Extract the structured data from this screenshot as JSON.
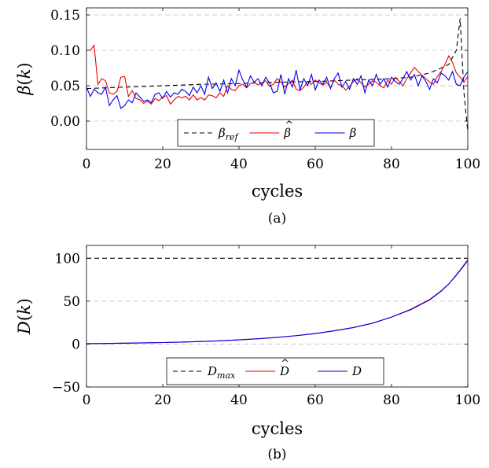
{
  "chart_data": [
    {
      "type": "line",
      "caption": "(a)",
      "xlabel": "cycles",
      "ylabel": "β(k)",
      "xlim": [
        0,
        100
      ],
      "ylim": [
        -0.04,
        0.16
      ],
      "xticks": [
        0,
        20,
        40,
        60,
        80,
        100
      ],
      "yticks": [
        0.0,
        0.05,
        0.1,
        0.15
      ],
      "ytick_labels": [
        "0.00",
        "0.05",
        "0.10",
        "0.15"
      ],
      "grid": "horizontal dashed",
      "legend_position": "bottom-center",
      "series": [
        {
          "name": "β_ref",
          "color": "#000000",
          "style": "dashed",
          "x": [
            0,
            10,
            20,
            30,
            40,
            50,
            60,
            70,
            80,
            85,
            90,
            93,
            95,
            97,
            98,
            99,
            100
          ],
          "y": [
            0.046,
            0.048,
            0.05,
            0.052,
            0.053,
            0.055,
            0.056,
            0.058,
            0.06,
            0.062,
            0.068,
            0.075,
            0.08,
            0.1,
            0.145,
            0.04,
            -0.015
          ]
        },
        {
          "name": "β̂",
          "color": "#ee0000",
          "style": "solid",
          "x": [
            0,
            1,
            2,
            3,
            4,
            5,
            6,
            7,
            8,
            9,
            10,
            11,
            12,
            13,
            14,
            15,
            16,
            17,
            18,
            19,
            20,
            21,
            22,
            23,
            24,
            25,
            26,
            27,
            28,
            29,
            30,
            31,
            32,
            33,
            34,
            35,
            36,
            37,
            38,
            39,
            40,
            41,
            42,
            43,
            44,
            45,
            46,
            47,
            48,
            49,
            50,
            51,
            52,
            53,
            54,
            55,
            56,
            57,
            58,
            59,
            60,
            61,
            62,
            63,
            64,
            65,
            66,
            67,
            68,
            69,
            70,
            71,
            72,
            73,
            74,
            75,
            76,
            77,
            78,
            79,
            80,
            81,
            82,
            83,
            84,
            85,
            86,
            87,
            88,
            89,
            90,
            91,
            92,
            93,
            94,
            95,
            96,
            97,
            98,
            99,
            100
          ],
          "y": [
            0.1,
            0.1,
            0.107,
            0.052,
            0.06,
            0.057,
            0.04,
            0.038,
            0.042,
            0.062,
            0.063,
            0.035,
            0.043,
            0.032,
            0.03,
            0.025,
            0.028,
            0.024,
            0.032,
            0.029,
            0.034,
            0.036,
            0.024,
            0.03,
            0.035,
            0.033,
            0.035,
            0.03,
            0.037,
            0.03,
            0.033,
            0.03,
            0.037,
            0.036,
            0.033,
            0.04,
            0.035,
            0.05,
            0.045,
            0.043,
            0.05,
            0.052,
            0.047,
            0.053,
            0.055,
            0.051,
            0.054,
            0.057,
            0.049,
            0.052,
            0.06,
            0.055,
            0.048,
            0.053,
            0.058,
            0.045,
            0.043,
            0.048,
            0.056,
            0.052,
            0.058,
            0.054,
            0.051,
            0.055,
            0.047,
            0.058,
            0.052,
            0.05,
            0.044,
            0.049,
            0.056,
            0.06,
            0.054,
            0.048,
            0.052,
            0.057,
            0.055,
            0.05,
            0.047,
            0.058,
            0.052,
            0.062,
            0.056,
            0.05,
            0.06,
            0.068,
            0.076,
            0.07,
            0.065,
            0.06,
            0.055,
            0.052,
            0.063,
            0.07,
            0.08,
            0.092,
            0.083,
            0.068,
            0.062,
            0.055,
            0.063
          ]
        },
        {
          "name": "β",
          "color": "#0000ee",
          "style": "solid",
          "x": [
            0,
            1,
            2,
            3,
            4,
            5,
            6,
            7,
            8,
            9,
            10,
            11,
            12,
            13,
            14,
            15,
            16,
            17,
            18,
            19,
            20,
            21,
            22,
            23,
            24,
            25,
            26,
            27,
            28,
            29,
            30,
            31,
            32,
            33,
            34,
            35,
            36,
            37,
            38,
            39,
            40,
            41,
            42,
            43,
            44,
            45,
            46,
            47,
            48,
            49,
            50,
            51,
            52,
            53,
            54,
            55,
            56,
            57,
            58,
            59,
            60,
            61,
            62,
            63,
            64,
            65,
            66,
            67,
            68,
            69,
            70,
            71,
            72,
            73,
            74,
            75,
            76,
            77,
            78,
            79,
            80,
            81,
            82,
            83,
            84,
            85,
            86,
            87,
            88,
            89,
            90,
            91,
            92,
            93,
            94,
            95,
            96,
            97,
            98,
            99,
            100
          ],
          "y": [
            0.048,
            0.035,
            0.045,
            0.04,
            0.038,
            0.048,
            0.022,
            0.03,
            0.036,
            0.018,
            0.022,
            0.03,
            0.026,
            0.04,
            0.034,
            0.028,
            0.03,
            0.026,
            0.038,
            0.04,
            0.032,
            0.042,
            0.034,
            0.04,
            0.038,
            0.045,
            0.042,
            0.036,
            0.048,
            0.04,
            0.05,
            0.038,
            0.062,
            0.046,
            0.054,
            0.042,
            0.058,
            0.04,
            0.06,
            0.05,
            0.072,
            0.058,
            0.048,
            0.064,
            0.055,
            0.06,
            0.05,
            0.062,
            0.054,
            0.04,
            0.042,
            0.066,
            0.038,
            0.06,
            0.048,
            0.072,
            0.044,
            0.06,
            0.05,
            0.066,
            0.044,
            0.058,
            0.052,
            0.062,
            0.046,
            0.06,
            0.068,
            0.048,
            0.056,
            0.045,
            0.06,
            0.052,
            0.064,
            0.04,
            0.058,
            0.05,
            0.066,
            0.052,
            0.06,
            0.048,
            0.062,
            0.056,
            0.052,
            0.06,
            0.07,
            0.058,
            0.066,
            0.05,
            0.064,
            0.056,
            0.045,
            0.06,
            0.054,
            0.068,
            0.064,
            0.058,
            0.07,
            0.052,
            0.05,
            0.062,
            0.07
          ]
        }
      ]
    },
    {
      "type": "line",
      "caption": "(b)",
      "xlabel": "cycles",
      "ylabel": "D(k)",
      "xlim": [
        0,
        100
      ],
      "ylim": [
        -50,
        115
      ],
      "xticks": [
        0,
        20,
        40,
        60,
        80,
        100
      ],
      "yticks": [
        -50,
        0,
        50,
        100
      ],
      "ytick_labels": [
        "−50",
        "0",
        "50",
        "100"
      ],
      "grid": "horizontal dashed",
      "legend_position": "bottom-center",
      "series": [
        {
          "name": "D_max",
          "color": "#000000",
          "style": "dashed",
          "x": [
            0,
            100
          ],
          "y": [
            100,
            100
          ]
        },
        {
          "name": "D̂",
          "color": "#ee0000",
          "style": "solid",
          "x": [
            0,
            5,
            10,
            15,
            20,
            25,
            30,
            35,
            40,
            45,
            50,
            55,
            60,
            65,
            70,
            75,
            80,
            85,
            90,
            93,
            95,
            97,
            100
          ],
          "y": [
            0.5,
            0.7,
            1.0,
            1.4,
            1.8,
            2.3,
            3.0,
            3.8,
            4.9,
            6.2,
            7.8,
            9.8,
            12.3,
            15.5,
            19.3,
            24.3,
            31.5,
            40.5,
            52.0,
            62.0,
            70.0,
            80.0,
            97.0
          ]
        },
        {
          "name": "D",
          "color": "#0000ee",
          "style": "solid",
          "x": [
            0,
            5,
            10,
            15,
            20,
            25,
            30,
            35,
            40,
            45,
            50,
            55,
            60,
            65,
            70,
            75,
            80,
            85,
            90,
            93,
            95,
            97,
            100
          ],
          "y": [
            0.5,
            0.7,
            1.0,
            1.4,
            1.8,
            2.3,
            3.0,
            3.8,
            4.9,
            6.2,
            7.8,
            9.8,
            12.3,
            15.5,
            19.3,
            24.3,
            31.5,
            40.0,
            51.5,
            61.5,
            70.0,
            80.5,
            98.0
          ]
        }
      ]
    }
  ]
}
